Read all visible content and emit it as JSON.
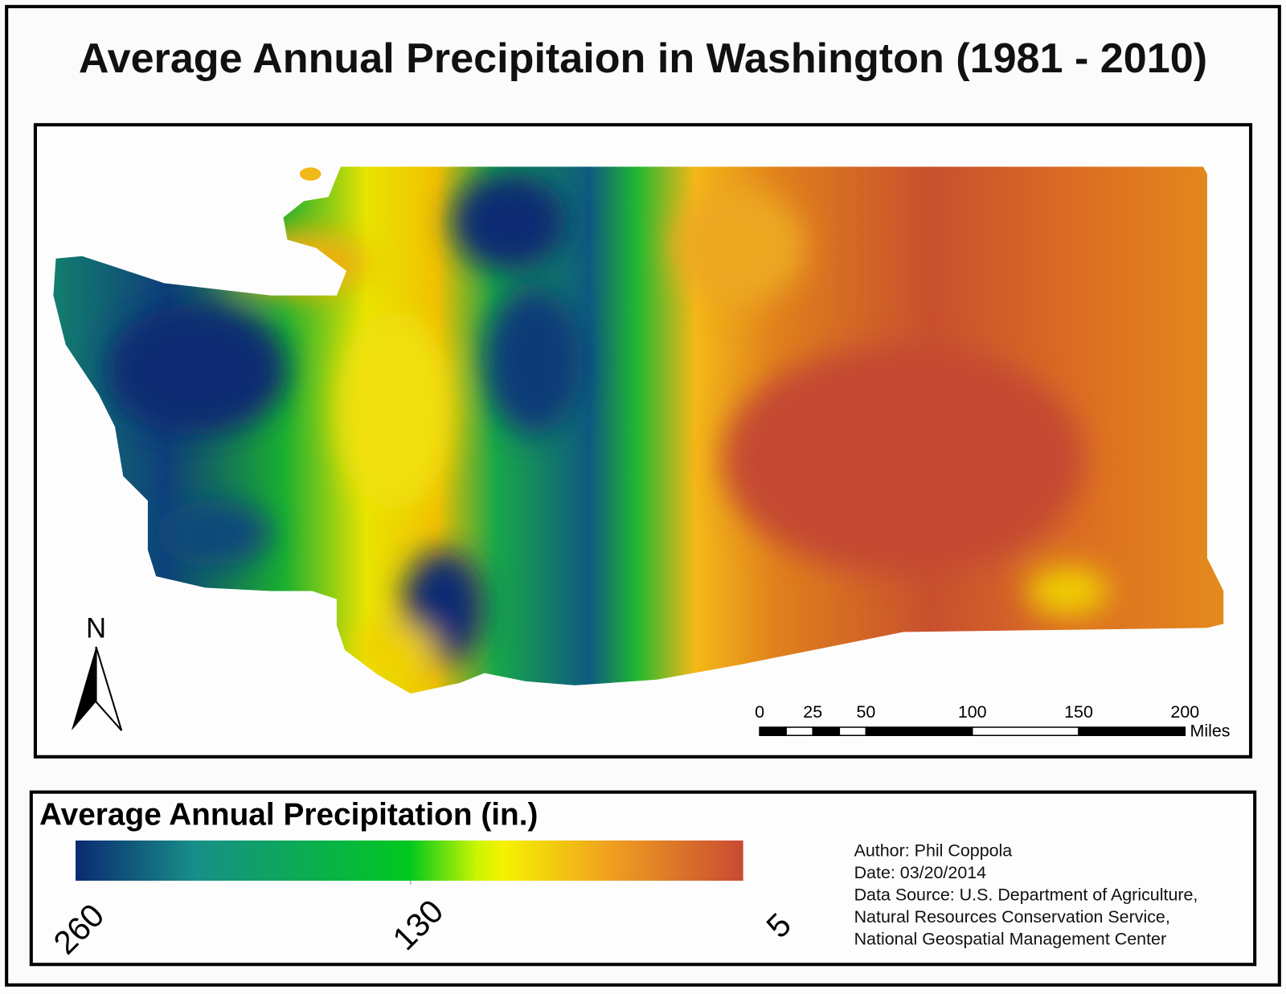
{
  "title": "Average Annual Precipitaion in Washington (1981 - 2010)",
  "north_arrow": {
    "label": "N"
  },
  "scale_bar": {
    "unit": "Miles",
    "tick_labels": [
      "0",
      "25",
      "50",
      "100",
      "150",
      "200"
    ],
    "segments_miles": [
      [
        0,
        12.5,
        "black"
      ],
      [
        12.5,
        25,
        "white"
      ],
      [
        25,
        37.5,
        "black"
      ],
      [
        37.5,
        50,
        "white"
      ],
      [
        50,
        100,
        "black"
      ],
      [
        100,
        150,
        "white"
      ],
      [
        150,
        200,
        "black"
      ]
    ]
  },
  "legend": {
    "title": "Average Annual Precipitation (in.)",
    "labels": [
      "260",
      "130",
      "5"
    ],
    "colors": [
      "#0b2a72",
      "#178f88",
      "#00c81e",
      "#f5f200",
      "#f0a020",
      "#e07a22",
      "#c84b32"
    ]
  },
  "credits": {
    "author": "Author: Phil Coppola",
    "date": "Date: 03/20/2014",
    "source_1": "Data Source: U.S. Department of Agriculture,",
    "source_2": "Natural Resources Conservation Service,",
    "source_3": "National Geospatial Management Center"
  }
}
